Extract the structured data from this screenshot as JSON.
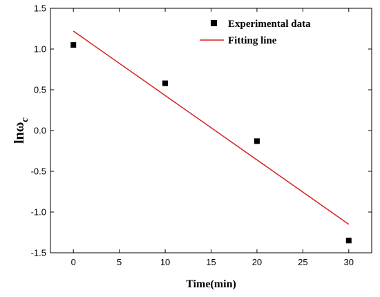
{
  "chart_data": {
    "type": "scatter",
    "title": "",
    "xlabel": "Time(min)",
    "ylabel_main": "lnω",
    "ylabel_sub": "c",
    "xlim": [
      -2.5,
      32.5
    ],
    "ylim": [
      -1.5,
      1.5
    ],
    "xticks": [
      0,
      5,
      10,
      15,
      20,
      25,
      30
    ],
    "yticks": [
      1.5,
      1.0,
      0.5,
      0.0,
      -0.5,
      -1.0,
      -1.5
    ],
    "xtick_labels": [
      "0",
      "5",
      "10",
      "15",
      "20",
      "25",
      "30"
    ],
    "ytick_labels": [
      "1.5",
      "1.0",
      "0.5",
      "0.0",
      "-0.5",
      "-1.0",
      "-1.5"
    ],
    "series": [
      {
        "name": "Experimental data",
        "kind": "scatter",
        "color": "#000000",
        "x": [
          0,
          10,
          20,
          30
        ],
        "y": [
          1.05,
          0.58,
          -0.13,
          -1.35
        ]
      },
      {
        "name": "Fitting line",
        "kind": "line",
        "color": "#d62020",
        "x": [
          0,
          30
        ],
        "y": [
          1.22,
          -1.15
        ]
      }
    ],
    "legend_position": "top-right",
    "grid": false
  }
}
